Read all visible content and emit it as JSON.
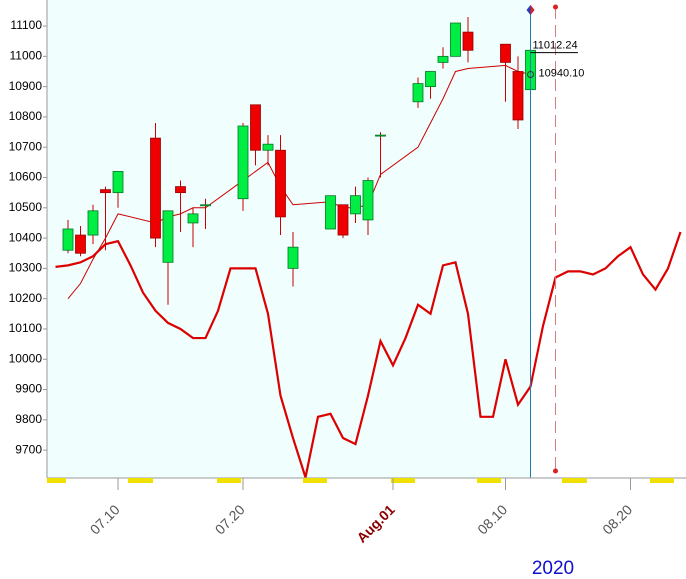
{
  "chart_data": {
    "type": "candlestick",
    "ylim": [
      9608,
      11186
    ],
    "yticks": [
      9700,
      9800,
      9900,
      10000,
      10100,
      10200,
      10300,
      10400,
      10500,
      10600,
      10700,
      10800,
      10900,
      11000,
      11100
    ],
    "xticks": [
      "07.10",
      "07.20",
      {
        "value": "08.01",
        "label": "Aug.01"
      },
      "08.10",
      "08.20"
    ],
    "year": "2020",
    "up_color": "#00ee44",
    "down_color": "#ee0000",
    "candles": {
      "x": [
        "07.06",
        "07.07",
        "07.08",
        "07.09",
        "07.10",
        "07.13",
        "07.14",
        "07.15",
        "07.16",
        "07.17",
        "07.20",
        "07.21",
        "07.22",
        "07.23",
        "07.24",
        "07.27",
        "07.28",
        "07.29",
        "07.30",
        "07.31",
        "08.03",
        "08.04",
        "08.05",
        "08.06",
        "08.07",
        "08.10",
        "08.11",
        "08.12"
      ],
      "open": [
        10360,
        10410,
        10410,
        10560,
        10550,
        10730,
        10320,
        10570,
        10450,
        10510,
        10530,
        10840,
        10690,
        10690,
        10300,
        10430,
        10510,
        10480,
        10460,
        10740,
        10850,
        10900,
        10980,
        11000,
        11080,
        11040,
        10950,
        10890
      ],
      "high": [
        10460,
        10440,
        10510,
        10570,
        10620,
        10780,
        10490,
        10590,
        10500,
        10530,
        10780,
        10840,
        10740,
        10740,
        10420,
        10540,
        10510,
        10570,
        10600,
        10750,
        10930,
        10950,
        11030,
        11110,
        11130,
        11040,
        11000,
        11040
      ],
      "low": [
        10350,
        10340,
        10380,
        10360,
        10500,
        10370,
        10180,
        10420,
        10370,
        10430,
        10490,
        10640,
        10640,
        10410,
        10240,
        10430,
        10400,
        10450,
        10410,
        10600,
        10830,
        10860,
        10960,
        11000,
        10980,
        10850,
        10760,
        10880
      ],
      "close": [
        10430,
        10350,
        10490,
        10550,
        10620,
        10400,
        10490,
        10550,
        10480,
        10510,
        10770,
        10690,
        10710,
        10470,
        10370,
        10540,
        10410,
        10540,
        10590,
        10740,
        10910,
        10950,
        11000,
        11110,
        11020,
        10980,
        10790,
        11020
      ]
    },
    "lines": [
      {
        "color": "#cc0000",
        "x": [
          "07.06",
          "07.07",
          "07.08",
          "07.09",
          "07.10",
          "07.13",
          "07.14",
          "07.15",
          "07.16",
          "07.17",
          "07.20",
          "07.21",
          "07.22",
          "07.23",
          "07.24",
          "07.27",
          "07.28",
          "07.29",
          "07.30",
          "07.31",
          "08.03",
          "08.04",
          "08.05",
          "08.06",
          "08.07",
          "08.10",
          "08.11",
          "08.12"
        ],
        "values": [
          10200,
          10250,
          10330,
          10400,
          10480,
          10450,
          10470,
          10480,
          10500,
          10500,
          10590,
          10620,
          10650,
          10570,
          10510,
          10520,
          10500,
          10500,
          10510,
          10610,
          10700,
          10780,
          10860,
          10950,
          10960,
          10970,
          10950,
          10940
        ]
      },
      {
        "color": "#dd0000",
        "x": [
          "07.05",
          "07.06",
          "07.07",
          "07.08",
          "07.09",
          "07.10",
          "07.11",
          "07.12",
          "07.13",
          "07.14",
          "07.15",
          "07.16",
          "07.17",
          "07.18",
          "07.19",
          "07.20",
          "07.21",
          "07.22",
          "07.23",
          "07.24",
          "07.25",
          "07.26",
          "07.27",
          "07.28",
          "07.29",
          "07.30",
          "07.31",
          "08.01",
          "08.02",
          "08.03",
          "08.04",
          "08.05",
          "08.06",
          "08.07",
          "08.08",
          "08.09",
          "08.10",
          "08.11",
          "08.12",
          "08.13",
          "08.14",
          "08.15",
          "08.16",
          "08.17",
          "08.18",
          "08.19",
          "08.20",
          "08.21",
          "08.22",
          "08.23",
          "08.24"
        ],
        "values": [
          10305,
          10310,
          10320,
          10340,
          10380,
          10390,
          10310,
          10220,
          10160,
          10120,
          10100,
          10070,
          10070,
          10160,
          10300,
          10300,
          10300,
          10150,
          9880,
          9740,
          9610,
          9810,
          9820,
          9740,
          9720,
          9880,
          10060,
          9980,
          10070,
          10180,
          10150,
          10310,
          10320,
          10150,
          9810,
          9810,
          10000,
          9850,
          9910,
          10110,
          10270,
          10290,
          10290,
          10280,
          10300,
          10340,
          10370,
          10280,
          10230,
          10300,
          10420
        ]
      }
    ],
    "annotations": [
      {
        "label": "11012.24",
        "value": 11012.24
      },
      {
        "label": "10940.10",
        "value": 10940.1
      }
    ],
    "cursor": "08.12",
    "future_cursor": "08.14"
  }
}
